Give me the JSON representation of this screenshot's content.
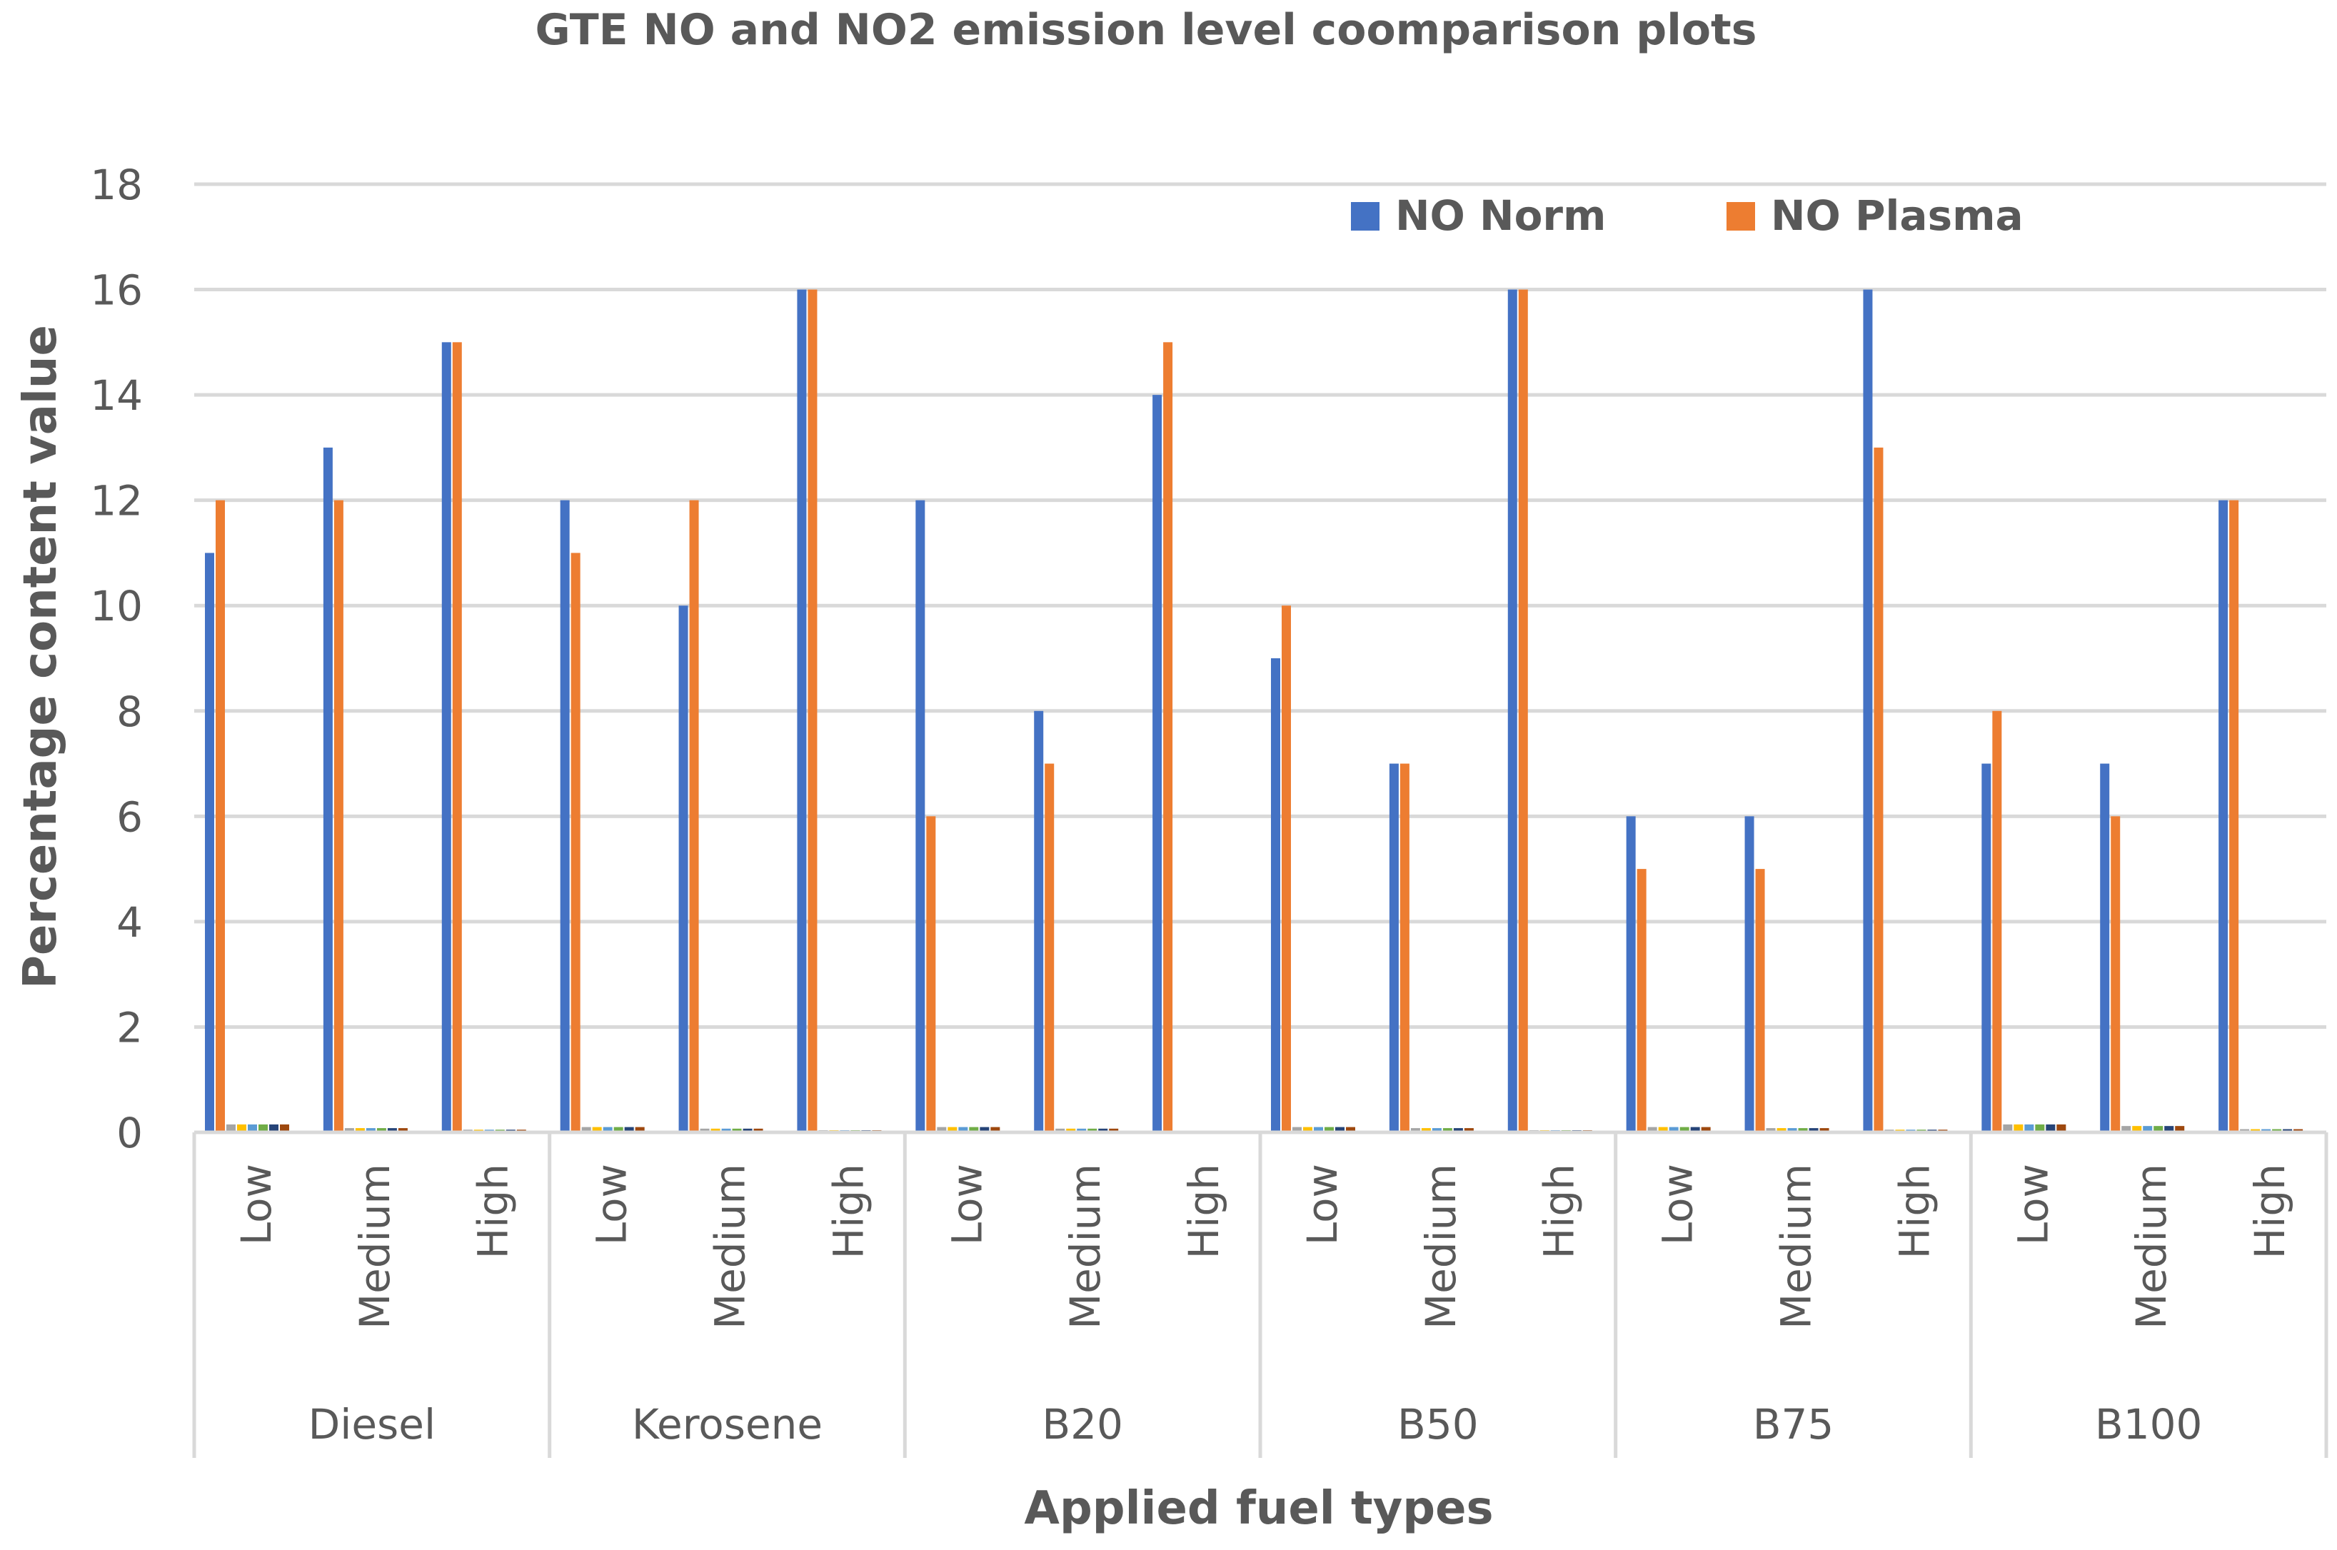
{
  "chart_data": {
    "type": "bar",
    "title": "GTE NO and NO2 emission level coomparison plots",
    "xlabel": "Applied fuel types",
    "ylabel": "Percentage content value",
    "ylim": [
      0,
      18
    ],
    "yticks": [
      "0",
      "2",
      "4",
      "6",
      "8",
      "10",
      "12",
      "14",
      "16",
      "18"
    ],
    "grid": true,
    "legend_position": "top-right",
    "groups": [
      {
        "name": "Diesel",
        "levels": [
          "Low",
          "Medium",
          "High"
        ]
      },
      {
        "name": "Kerosene",
        "levels": [
          "Low",
          "Medium",
          "High"
        ]
      },
      {
        "name": "B20",
        "levels": [
          "Low",
          "Medium",
          "High"
        ]
      },
      {
        "name": "B50",
        "levels": [
          "Low",
          "Medium",
          "High"
        ]
      },
      {
        "name": "B75",
        "levels": [
          "Low",
          "Medium",
          "High"
        ]
      },
      {
        "name": "B100",
        "levels": [
          "Low",
          "Medium",
          "High"
        ]
      }
    ],
    "series": [
      {
        "name": "NO Norm",
        "color": "#4472C4",
        "values": [
          11,
          13,
          15,
          12,
          10,
          16,
          12,
          8,
          14,
          9,
          7,
          16,
          6,
          6,
          16,
          7,
          7,
          12
        ]
      },
      {
        "name": "NO Plasma",
        "color": "#ED7D31",
        "values": [
          12,
          12,
          15,
          11,
          12,
          16,
          6,
          7,
          15,
          10,
          7,
          16,
          5,
          5,
          13,
          8,
          6,
          12
        ]
      },
      {
        "name": "",
        "color": "#A5A5A5",
        "values": [
          0.15,
          0.08,
          0.05,
          0.1,
          0.07,
          0.04,
          0.1,
          0.07,
          0.0,
          0.1,
          0.08,
          0.04,
          0.1,
          0.08,
          0.05,
          0.15,
          0.12,
          0.06
        ]
      },
      {
        "name": "",
        "color": "#FFC000",
        "values": [
          0.15,
          0.08,
          0.05,
          0.1,
          0.07,
          0.04,
          0.1,
          0.07,
          0.0,
          0.1,
          0.08,
          0.04,
          0.1,
          0.08,
          0.05,
          0.15,
          0.12,
          0.06
        ]
      },
      {
        "name": "",
        "color": "#5B9BD5",
        "values": [
          0.15,
          0.08,
          0.05,
          0.1,
          0.07,
          0.04,
          0.1,
          0.07,
          0.0,
          0.1,
          0.08,
          0.04,
          0.1,
          0.08,
          0.05,
          0.15,
          0.12,
          0.06
        ]
      },
      {
        "name": "",
        "color": "#70AD47",
        "values": [
          0.15,
          0.08,
          0.05,
          0.1,
          0.07,
          0.04,
          0.1,
          0.07,
          0.0,
          0.1,
          0.08,
          0.04,
          0.1,
          0.08,
          0.05,
          0.15,
          0.12,
          0.06
        ]
      },
      {
        "name": "",
        "color": "#264478",
        "values": [
          0.15,
          0.08,
          0.05,
          0.1,
          0.07,
          0.04,
          0.1,
          0.07,
          0.0,
          0.1,
          0.08,
          0.04,
          0.1,
          0.08,
          0.05,
          0.15,
          0.12,
          0.06
        ]
      },
      {
        "name": "",
        "color": "#9E480E",
        "values": [
          0.15,
          0.08,
          0.05,
          0.1,
          0.07,
          0.04,
          0.1,
          0.07,
          0.0,
          0.1,
          0.08,
          0.04,
          0.1,
          0.08,
          0.05,
          0.15,
          0.12,
          0.06
        ]
      }
    ],
    "legend": [
      {
        "label": "NO Norm",
        "color": "#4472C4"
      },
      {
        "label": "NO Plasma",
        "color": "#ED7D31"
      }
    ]
  }
}
